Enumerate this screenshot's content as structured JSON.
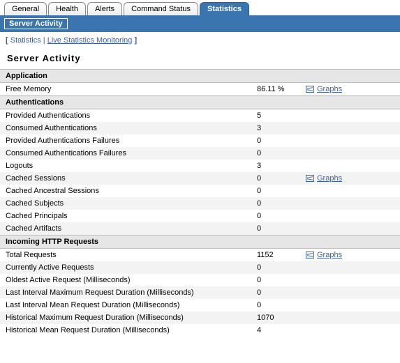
{
  "tabs": {
    "items": [
      {
        "label": "General",
        "active": false
      },
      {
        "label": "Health",
        "active": false
      },
      {
        "label": "Alerts",
        "active": false
      },
      {
        "label": "Command Status",
        "active": false
      },
      {
        "label": "Statistics",
        "active": true
      }
    ]
  },
  "subtab": {
    "label": "Server Activity"
  },
  "breadcrumb": {
    "open": "[",
    "close": "]",
    "item1": "Statistics",
    "sep": " | ",
    "item2": "Live Statistics Monitoring"
  },
  "page_title": "Server Activity",
  "graphs_label": "Graphs",
  "sections": [
    {
      "title": "Application",
      "rows": [
        {
          "label": "Free Memory",
          "value": "86.11 %",
          "graph": true
        }
      ]
    },
    {
      "title": "Authentications",
      "rows": [
        {
          "label": "Provided Authentications",
          "value": "5",
          "graph": false
        },
        {
          "label": "Consumed Authentications",
          "value": "3",
          "graph": false
        },
        {
          "label": "Provided Authentications Failures",
          "value": "0",
          "graph": false
        },
        {
          "label": "Consumed Authentications Failures",
          "value": "0",
          "graph": false
        },
        {
          "label": "Logouts",
          "value": "3",
          "graph": false
        },
        {
          "label": "Cached Sessions",
          "value": "0",
          "graph": true
        },
        {
          "label": "Cached Ancestral Sessions",
          "value": "0",
          "graph": false
        },
        {
          "label": "Cached Subjects",
          "value": "0",
          "graph": false
        },
        {
          "label": "Cached Principals",
          "value": "0",
          "graph": false
        },
        {
          "label": "Cached Artifacts",
          "value": "0",
          "graph": false
        }
      ]
    },
    {
      "title": "Incoming HTTP Requests",
      "rows": [
        {
          "label": "Total Requests",
          "value": "1152",
          "graph": true
        },
        {
          "label": "Currently Active Requests",
          "value": "0",
          "graph": false
        },
        {
          "label": "Oldest Active Request (Milliseconds)",
          "value": "0",
          "graph": false
        },
        {
          "label": "Last Interval Maximum Request Duration (Milliseconds)",
          "value": "0",
          "graph": false
        },
        {
          "label": "Last Interval Mean Request Duration (Milliseconds)",
          "value": "0",
          "graph": false
        },
        {
          "label": "Historical Maximum Request Duration (Milliseconds)",
          "value": "1070",
          "graph": false
        },
        {
          "label": "Historical Mean Request Duration (Milliseconds)",
          "value": "4",
          "graph": false
        }
      ]
    }
  ]
}
